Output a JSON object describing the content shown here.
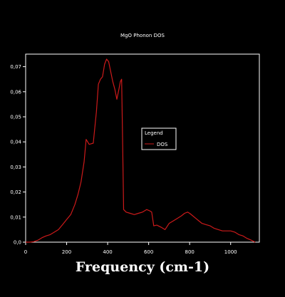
{
  "chart_data": {
    "type": "line",
    "title": "MgO Phonon DOS",
    "xlabel": "Frequency (cm-1)",
    "ylabel": "",
    "xlim": [
      0,
      1140
    ],
    "ylim": [
      0,
      0.075
    ],
    "xticks": [
      "0",
      "200",
      "400",
      "600",
      "800",
      "1000"
    ],
    "xtick_values": [
      0,
      200,
      400,
      600,
      800,
      1000
    ],
    "yticks": [
      "0,0",
      "0,01",
      "0,02",
      "0,03",
      "0,04",
      "0,05",
      "0,06",
      "0,07"
    ],
    "ytick_values": [
      0,
      0.01,
      0.02,
      0.03,
      0.04,
      0.05,
      0.06,
      0.07
    ],
    "grid": false,
    "legend": {
      "title": "Legend",
      "position": "center-right"
    },
    "colors": {
      "background": "#000000",
      "axes": "#ffffff",
      "series": "#cc1a1a"
    },
    "series": [
      {
        "name": "DOS",
        "x": [
          0,
          20,
          40,
          60,
          80,
          100,
          120,
          140,
          160,
          180,
          200,
          220,
          240,
          255,
          270,
          285,
          295,
          310,
          330,
          345,
          355,
          365,
          375,
          385,
          395,
          405,
          415,
          425,
          435,
          445,
          455,
          462,
          468,
          473,
          478,
          490,
          510,
          530,
          550,
          570,
          590,
          605,
          615,
          625,
          640,
          660,
          680,
          700,
          720,
          740,
          760,
          775,
          790,
          800,
          815,
          830,
          845,
          860,
          880,
          900,
          920,
          940,
          960,
          980,
          1000,
          1020,
          1040,
          1060,
          1080,
          1100,
          1120
        ],
        "y": [
          0,
          0,
          0.0002,
          0.0008,
          0.0018,
          0.0025,
          0.003,
          0.004,
          0.005,
          0.007,
          0.009,
          0.011,
          0.015,
          0.019,
          0.024,
          0.032,
          0.041,
          0.039,
          0.0395,
          0.052,
          0.063,
          0.065,
          0.066,
          0.071,
          0.073,
          0.072,
          0.068,
          0.064,
          0.061,
          0.057,
          0.061,
          0.064,
          0.065,
          0.04,
          0.013,
          0.012,
          0.0115,
          0.011,
          0.0115,
          0.012,
          0.013,
          0.0125,
          0.012,
          0.0065,
          0.0068,
          0.006,
          0.005,
          0.0075,
          0.0085,
          0.0095,
          0.0105,
          0.0115,
          0.012,
          0.0115,
          0.0105,
          0.0095,
          0.0085,
          0.0075,
          0.007,
          0.0065,
          0.0055,
          0.005,
          0.0045,
          0.0045,
          0.0045,
          0.004,
          0.003,
          0.0025,
          0.0015,
          0.0008,
          0
        ]
      }
    ]
  }
}
